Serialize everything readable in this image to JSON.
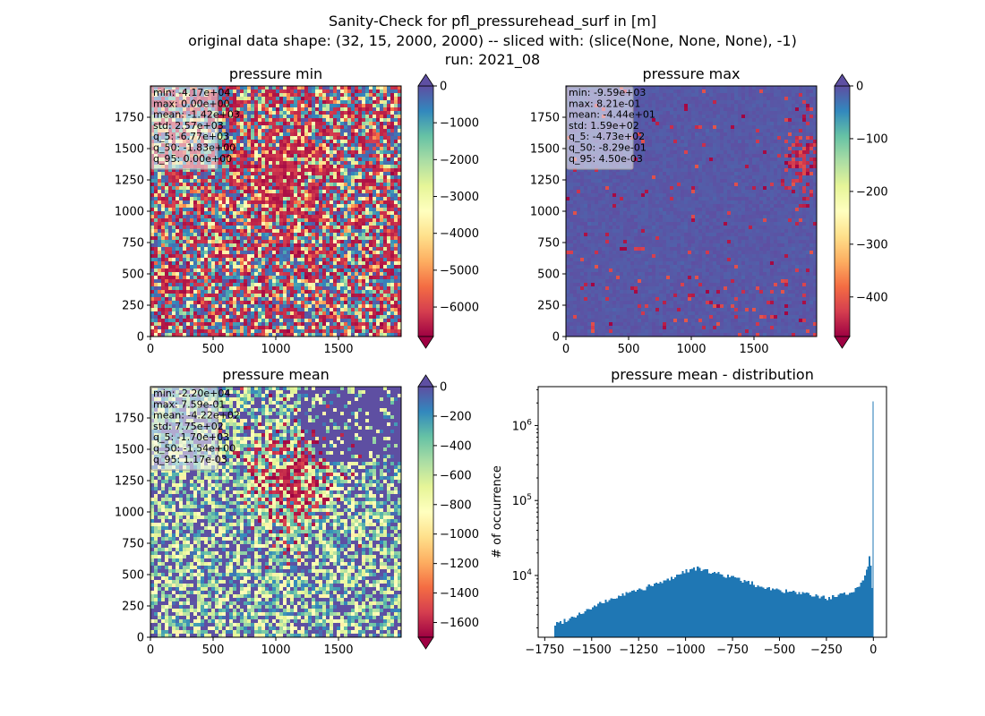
{
  "suptitle": {
    "line1": "Sanity-Check for pfl_pressurehead_surf in [m]",
    "line2": "original data shape: (32, 15, 2000, 2000) -- sliced with: (slice(None, None, None), -1)",
    "line3": "run: 2021_08"
  },
  "colors": {
    "spectral_stops": [
      "#9e0142",
      "#d53e4f",
      "#f46d43",
      "#fdae61",
      "#fee08b",
      "#ffffbf",
      "#e6f598",
      "#abdda4",
      "#66c2a5",
      "#3288bd",
      "#5e4fa2"
    ],
    "hist_bar": "#1f77b4",
    "stats_box": "#f5f5f5"
  },
  "chart_data": [
    {
      "type": "heatmap",
      "id": "pmin",
      "title": "pressure min",
      "xlim": [
        0,
        2000
      ],
      "ylim": [
        0,
        2000
      ],
      "xticks": [
        "0",
        "500",
        "1000",
        "1500"
      ],
      "yticks": [
        "0",
        "250",
        "500",
        "750",
        "1000",
        "1250",
        "1500",
        "1750"
      ],
      "colormap": "Spectral",
      "vmin": -6800,
      "vmax": 0,
      "colorbar_extend": "both",
      "colorbar_ticks": [
        "0",
        "−1000",
        "−2000",
        "−3000",
        "−4000",
        "−5000",
        "−6000"
      ],
      "colorbar_tick_values": [
        0,
        -1000,
        -2000,
        -3000,
        -4000,
        -5000,
        -6000
      ],
      "stats": [
        "min: -4.17e+04",
        "max: 0.00e+00",
        "mean: -1.42e+03",
        "std: 2.57e+03",
        "q_5: -6.77e+03",
        "q_50: -1.83e+00",
        "q_95: 0.00e+00"
      ]
    },
    {
      "type": "heatmap",
      "id": "pmax",
      "title": "pressure max",
      "xlim": [
        0,
        2000
      ],
      "ylim": [
        0,
        2000
      ],
      "xticks": [
        "0",
        "500",
        "1000",
        "1500"
      ],
      "yticks": [
        "0",
        "250",
        "500",
        "750",
        "1000",
        "1250",
        "1500",
        "1750"
      ],
      "colormap": "Spectral",
      "vmin": -475,
      "vmax": 0,
      "colorbar_extend": "both",
      "colorbar_ticks": [
        "0",
        "−100",
        "−200",
        "−300",
        "−400"
      ],
      "colorbar_tick_values": [
        0,
        -100,
        -200,
        -300,
        -400
      ],
      "stats": [
        "min: -9.59e+03",
        "max: 8.21e-01",
        "mean: -4.44e+01",
        "std: 1.59e+02",
        "q_5: -4.73e+02",
        "q_50: -8.29e-01",
        "q_95: 4.50e-03"
      ]
    },
    {
      "type": "heatmap",
      "id": "pmean",
      "title": "pressure mean",
      "xlim": [
        0,
        2000
      ],
      "ylim": [
        0,
        2000
      ],
      "xticks": [
        "0",
        "500",
        "1000",
        "1500"
      ],
      "yticks": [
        "0",
        "250",
        "500",
        "750",
        "1000",
        "1250",
        "1500",
        "1750"
      ],
      "colormap": "Spectral",
      "vmin": -1700,
      "vmax": 0,
      "colorbar_extend": "both",
      "colorbar_ticks": [
        "0",
        "−200",
        "−400",
        "−600",
        "−800",
        "−1000",
        "−1200",
        "−1400",
        "−1600"
      ],
      "colorbar_tick_values": [
        0,
        -200,
        -400,
        -600,
        -800,
        -1000,
        -1200,
        -1400,
        -1600
      ],
      "stats": [
        "min: -2.20e+04",
        "max: 7.59e-01",
        "mean: -4.22e+02",
        "std: 7.75e+02",
        "q_5: -1.70e+03",
        "q_50: -1.54e+00",
        "q_95: 1.17e-03"
      ]
    },
    {
      "type": "bar",
      "id": "hist",
      "title": "pressure mean - distribution",
      "ylabel": "# of occurrence",
      "yscale": "log",
      "xlim": [
        -1785,
        70
      ],
      "ylim": [
        1500,
        3300000
      ],
      "xticks": [
        "−1750",
        "−1500",
        "−1250",
        "−1000",
        "−750",
        "−500",
        "−250",
        "0"
      ],
      "xtick_values": [
        -1750,
        -1500,
        -1250,
        -1000,
        -750,
        -500,
        -250,
        0
      ],
      "yticks": [
        "10^4",
        "10^5",
        "10^6"
      ],
      "ytick_values": [
        10000,
        100000,
        1000000
      ],
      "bin_edges": [
        -1700,
        -1600,
        -1500,
        -1400,
        -1300,
        -1200,
        -1100,
        -1000,
        -950,
        -900,
        -800,
        -700,
        -600,
        -500,
        -400,
        -300,
        -250,
        -200,
        -150,
        -100,
        -60,
        -40,
        -25,
        -15,
        -8,
        -5,
        -3,
        0
      ],
      "counts": [
        2200,
        2800,
        3700,
        4800,
        5900,
        7000,
        8600,
        11500,
        12500,
        11700,
        10300,
        8600,
        7200,
        6300,
        5800,
        5300,
        5000,
        5200,
        5600,
        6500,
        8000,
        11000,
        15000,
        20000,
        9000,
        5500,
        2100000
      ]
    }
  ]
}
